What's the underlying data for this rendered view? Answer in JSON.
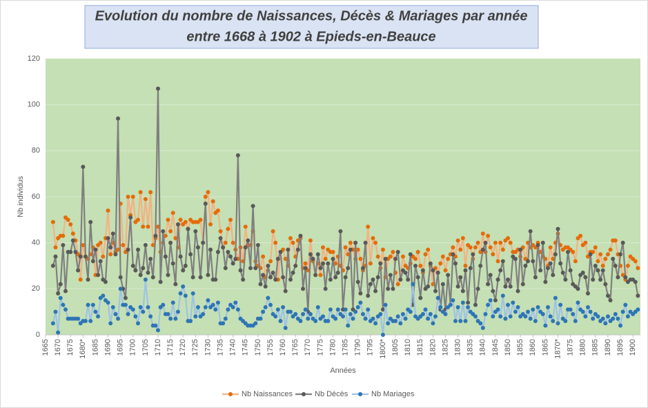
{
  "chart_data": {
    "type": "line",
    "title": [
      "Evolution du nombre de Naissances, Décès & Mariages par année",
      "entre 1668 à 1902 à Epieds-en-Beauce"
    ],
    "x_label": "Années",
    "y_label": "Nb individus",
    "xlim": [
      1665,
      1903
    ],
    "ylim": [
      0,
      120
    ],
    "xticks": [
      1665,
      1670,
      1675,
      {
        "value": 1680,
        "label": "1680*"
      },
      1685,
      1690,
      1695,
      1700,
      1705,
      1710,
      1715,
      1720,
      1725,
      1730,
      1735,
      1740,
      1745,
      1750,
      1755,
      1760,
      1765,
      1770,
      1775,
      1780,
      1785,
      1790,
      1795,
      {
        "value": 1800,
        "label": "1800*"
      },
      1805,
      1810,
      1815,
      1820,
      1825,
      1830,
      1835,
      1840,
      1845,
      1850,
      1855,
      1860,
      1865,
      {
        "value": 1870,
        "label": "1870*"
      },
      1875,
      1880,
      1885,
      1890,
      1895,
      1900
    ],
    "yticks": [
      0,
      20,
      40,
      60,
      80,
      100,
      120
    ],
    "grid": true,
    "legend": "bottom",
    "x": [
      1668,
      1669,
      1670,
      1671,
      1672,
      1673,
      1674,
      1675,
      1676,
      1677,
      1678,
      1679,
      1680,
      1681,
      1682,
      1683,
      1684,
      1685,
      1686,
      1687,
      1688,
      1689,
      1690,
      1691,
      1692,
      1693,
      1694,
      1695,
      1696,
      1697,
      1698,
      1699,
      1700,
      1701,
      1702,
      1703,
      1704,
      1705,
      1706,
      1707,
      1708,
      1709,
      1710,
      1711,
      1712,
      1713,
      1714,
      1715,
      1716,
      1717,
      1718,
      1719,
      1720,
      1721,
      1722,
      1723,
      1724,
      1725,
      1726,
      1727,
      1728,
      1729,
      1730,
      1731,
      1732,
      1733,
      1734,
      1735,
      1736,
      1737,
      1738,
      1739,
      1740,
      1741,
      1742,
      1743,
      1744,
      1745,
      1746,
      1747,
      1748,
      1749,
      1750,
      1751,
      1752,
      1753,
      1754,
      1755,
      1756,
      1757,
      1758,
      1759,
      1760,
      1761,
      1762,
      1763,
      1764,
      1765,
      1766,
      1767,
      1768,
      1769,
      1770,
      1771,
      1772,
      1773,
      1774,
      1775,
      1776,
      1777,
      1778,
      1779,
      1780,
      1781,
      1782,
      1783,
      1784,
      1785,
      1786,
      1787,
      1788,
      1789,
      1790,
      1791,
      1792,
      1793,
      1794,
      1795,
      1796,
      1797,
      1798,
      1799,
      1800,
      1801,
      1802,
      1803,
      1804,
      1805,
      1806,
      1807,
      1808,
      1809,
      1810,
      1811,
      1812,
      1813,
      1814,
      1815,
      1816,
      1817,
      1818,
      1819,
      1820,
      1821,
      1822,
      1823,
      1824,
      1825,
      1826,
      1827,
      1828,
      1829,
      1830,
      1831,
      1832,
      1833,
      1834,
      1835,
      1836,
      1837,
      1838,
      1839,
      1840,
      1841,
      1842,
      1843,
      1844,
      1845,
      1846,
      1847,
      1848,
      1849,
      1850,
      1851,
      1852,
      1853,
      1854,
      1855,
      1856,
      1857,
      1858,
      1859,
      1860,
      1861,
      1862,
      1863,
      1864,
      1865,
      1866,
      1867,
      1868,
      1869,
      1870,
      1871,
      1872,
      1873,
      1874,
      1875,
      1876,
      1877,
      1878,
      1879,
      1880,
      1881,
      1882,
      1883,
      1884,
      1885,
      1886,
      1887,
      1888,
      1889,
      1890,
      1891,
      1892,
      1893,
      1894,
      1895,
      1896,
      1897,
      1898,
      1899,
      1900,
      1901,
      1902
    ],
    "series": [
      {
        "name": "Nb Naissances",
        "color": "#e46c0a",
        "line_color": "#f4b183",
        "values": [
          49,
          38,
          42,
          43,
          43,
          51,
          50,
          48,
          44,
          41,
          35,
          24,
          39,
          34,
          33,
          35,
          38,
          26,
          39,
          40,
          34,
          42,
          54,
          35,
          40,
          36,
          37,
          57,
          39,
          36,
          60,
          52,
          60,
          49,
          50,
          62,
          47,
          59,
          47,
          62,
          39,
          42,
          47,
          36,
          40,
          43,
          50,
          45,
          53,
          42,
          38,
          50,
          48,
          49,
          46,
          50,
          49,
          49,
          49,
          50,
          40,
          60,
          62,
          48,
          58,
          53,
          54,
          45,
          38,
          40,
          46,
          50,
          40,
          37,
          33,
          38,
          32,
          47,
          39,
          39,
          45,
          32,
          30,
          29,
          34,
          25,
          28,
          32,
          45,
          40,
          24,
          36,
          37,
          33,
          30,
          42,
          40,
          34,
          41,
          42,
          29,
          31,
          28,
          41,
          32,
          26,
          31,
          26,
          38,
          33,
          37,
          36,
          36,
          31,
          34,
          30,
          28,
          38,
          35,
          40,
          37,
          33,
          37,
          33,
          28,
          30,
          47,
          31,
          42,
          40,
          34,
          29,
          37,
          25,
          33,
          34,
          36,
          27,
          22,
          24,
          34,
          30,
          29,
          31,
          34,
          33,
          36,
          30,
          27,
          35,
          37,
          30,
          22,
          29,
          27,
          31,
          34,
          28,
          33,
          35,
          38,
          34,
          41,
          37,
          42,
          30,
          39,
          38,
          33,
          38,
          40,
          36,
          44,
          36,
          43,
          38,
          35,
          40,
          32,
          40,
          37,
          41,
          42,
          40,
          36,
          36,
          37,
          34,
          38,
          33,
          40,
          38,
          39,
          38,
          40,
          36,
          34,
          33,
          30,
          38,
          33,
          40,
          44,
          39,
          37,
          38,
          38,
          37,
          36,
          32,
          42,
          43,
          39,
          40,
          34,
          36,
          36,
          38,
          32,
          35,
          30,
          33,
          35,
          37,
          41,
          41,
          35,
          30,
          26,
          24,
          30,
          34,
          33,
          32,
          29
        ]
      },
      {
        "name": "Nb Décès",
        "color": "#595959",
        "line_color": "#7f7f7f",
        "values": [
          30,
          34,
          18,
          22,
          39,
          19,
          36,
          36,
          41,
          36,
          28,
          34,
          73,
          34,
          24,
          49,
          32,
          37,
          26,
          32,
          24,
          23,
          42,
          38,
          44,
          35,
          94,
          25,
          20,
          16,
          37,
          51,
          30,
          28,
          37,
          26,
          29,
          39,
          27,
          33,
          25,
          43,
          107,
          23,
          45,
          34,
          26,
          40,
          31,
          22,
          48,
          34,
          28,
          30,
          46,
          35,
          25,
          45,
          38,
          25,
          40,
          57,
          26,
          37,
          24,
          24,
          36,
          42,
          38,
          29,
          36,
          34,
          31,
          33,
          78,
          28,
          24,
          38,
          41,
          29,
          56,
          29,
          39,
          22,
          26,
          21,
          30,
          25,
          27,
          24,
          33,
          36,
          25,
          19,
          37,
          24,
          27,
          30,
          37,
          43,
          20,
          29,
          10,
          35,
          33,
          26,
          35,
          29,
          31,
          20,
          31,
          24,
          33,
          25,
          27,
          45,
          11,
          25,
          29,
          37,
          11,
          40,
          23,
          18,
          29,
          40,
          17,
          22,
          24,
          19,
          25,
          31,
          11,
          33,
          20,
          26,
          20,
          33,
          36,
          24,
          28,
          27,
          24,
          35,
          13,
          30,
          25,
          16,
          28,
          20,
          21,
          31,
          28,
          19,
          27,
          11,
          22,
          11,
          26,
          13,
          35,
          31,
          21,
          25,
          19,
          28,
          14,
          29,
          35,
          13,
          20,
          30,
          37,
          40,
          22,
          26,
          19,
          15,
          24,
          28,
          32,
          21,
          24,
          21,
          34,
          33,
          19,
          37,
          22,
          30,
          32,
          45,
          32,
          25,
          39,
          28,
          40,
          23,
          29,
          31,
          26,
          35,
          46,
          31,
          27,
          24,
          36,
          28,
          22,
          21,
          20,
          26,
          27,
          25,
          18,
          35,
          24,
          30,
          28,
          24,
          28,
          22,
          17,
          15,
          33,
          30,
          25,
          35,
          40,
          25,
          23,
          24,
          24,
          23,
          17
        ]
      },
      {
        "name": "Nb Mariages",
        "color": "#2e75b6",
        "line_color": "#9dc3e6",
        "values": [
          5,
          10,
          1,
          16,
          13,
          11,
          7,
          7,
          7,
          7,
          7,
          5,
          6,
          6,
          13,
          6,
          13,
          10,
          8,
          16,
          17,
          15,
          14,
          5,
          12,
          9,
          7,
          20,
          13,
          13,
          9,
          12,
          11,
          8,
          5,
          12,
          10,
          24,
          12,
          8,
          4,
          4,
          2,
          12,
          13,
          9,
          9,
          7,
          14,
          7,
          10,
          18,
          21,
          17,
          6,
          6,
          18,
          8,
          12,
          8,
          9,
          12,
          15,
          12,
          13,
          11,
          14,
          5,
          5,
          7,
          11,
          13,
          12,
          14,
          11,
          7,
          6,
          5,
          4,
          4,
          4,
          5,
          7,
          7,
          10,
          12,
          16,
          13,
          9,
          8,
          11,
          6,
          12,
          3,
          10,
          10,
          8,
          9,
          7,
          6,
          9,
          11,
          7,
          9,
          7,
          6,
          12,
          7,
          8,
          6,
          6,
          11,
          8,
          7,
          11,
          9,
          8,
          11,
          4,
          9,
          7,
          10,
          12,
          14,
          9,
          7,
          11,
          6,
          7,
          5,
          8,
          9,
          0,
          13,
          5,
          7,
          6,
          6,
          8,
          5,
          9,
          7,
          11,
          10,
          22,
          8,
          7,
          8,
          9,
          11,
          7,
          9,
          5,
          8,
          16,
          12,
          10,
          9,
          12,
          13,
          15,
          6,
          12,
          6,
          14,
          6,
          12,
          10,
          9,
          8,
          6,
          5,
          3,
          9,
          13,
          15,
          8,
          10,
          11,
          8,
          17,
          7,
          13,
          8,
          14,
          10,
          12,
          8,
          9,
          8,
          10,
          7,
          11,
          6,
          12,
          10,
          9,
          4,
          12,
          8,
          6,
          16,
          5,
          13,
          7,
          6,
          11,
          11,
          9,
          6,
          14,
          11,
          10,
          8,
          12,
          10,
          7,
          9,
          8,
          6,
          7,
          5,
          8,
          6,
          7,
          9,
          7,
          4,
          10,
          13,
          8,
          10,
          9,
          10,
          11
        ]
      }
    ]
  }
}
